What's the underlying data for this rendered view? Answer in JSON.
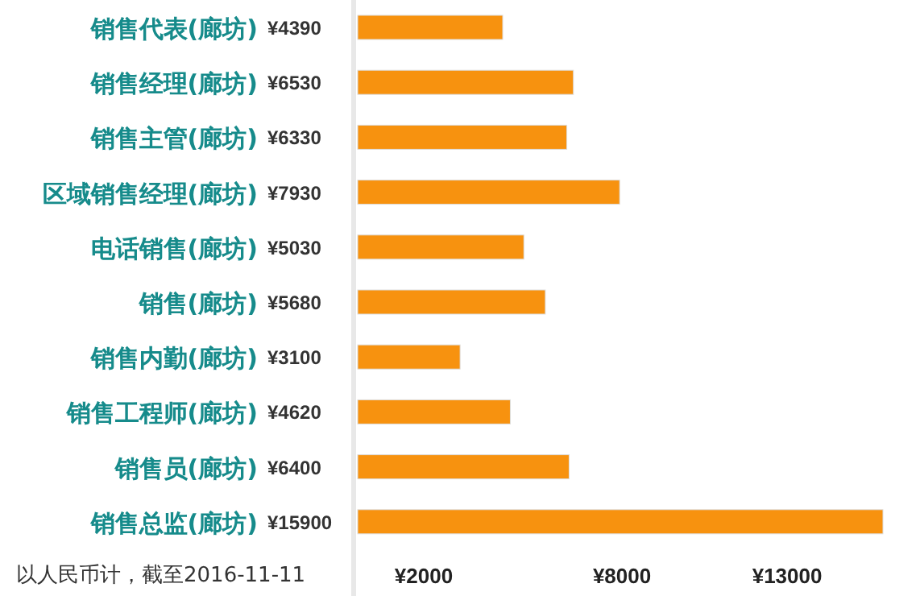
{
  "chart_data": {
    "type": "bar",
    "orientation": "horizontal",
    "categories": [
      "销售代表(廊坊)",
      "销售经理(廊坊)",
      "销售主管(廊坊)",
      "区域销售经理(廊坊)",
      "电话销售(廊坊)",
      "销售(廊坊)",
      "销售内勤(廊坊)",
      "销售工程师(廊坊)",
      "销售员(廊坊)",
      "销售总监(廊坊)"
    ],
    "values": [
      4390,
      6530,
      6330,
      7930,
      5030,
      5680,
      3100,
      4620,
      6400,
      15900
    ],
    "value_labels": [
      "¥4390",
      "¥6530",
      "¥6330",
      "¥7930",
      "¥5030",
      "¥5680",
      "¥3100",
      "¥4620",
      "¥6400",
      "¥15900"
    ],
    "color": "#f7920f",
    "xlim": [
      0,
      15900
    ],
    "xticks": [
      {
        "value": 2000,
        "label": "¥2000"
      },
      {
        "value": 8000,
        "label": "¥8000"
      },
      {
        "value": 13000,
        "label": "¥13000"
      }
    ],
    "grid": false,
    "annotations": [
      "以人民币计，截至2016-11-11"
    ]
  }
}
